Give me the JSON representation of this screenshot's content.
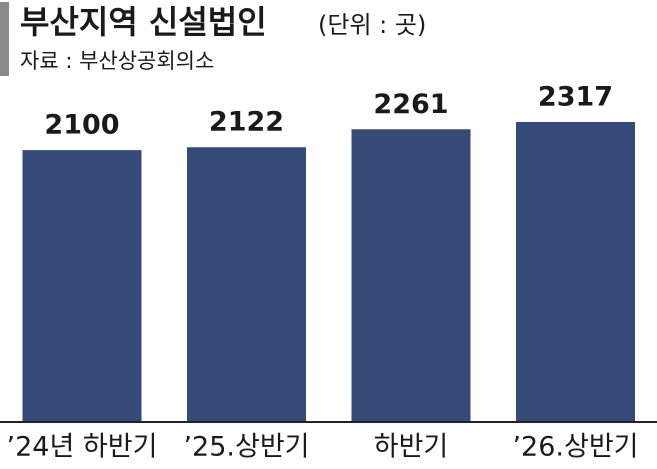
{
  "chart_data": {
    "type": "bar",
    "title": "부산지역 신설법인",
    "unit": "(단위 : 곳)",
    "source": "자료 : 부산상공회의소",
    "categories": [
      "’24년 하반기",
      "’25.상반기",
      "하반기",
      "’26.상반기"
    ],
    "values": [
      2100,
      2122,
      2261,
      2317
    ],
    "color": "#364a7a"
  }
}
